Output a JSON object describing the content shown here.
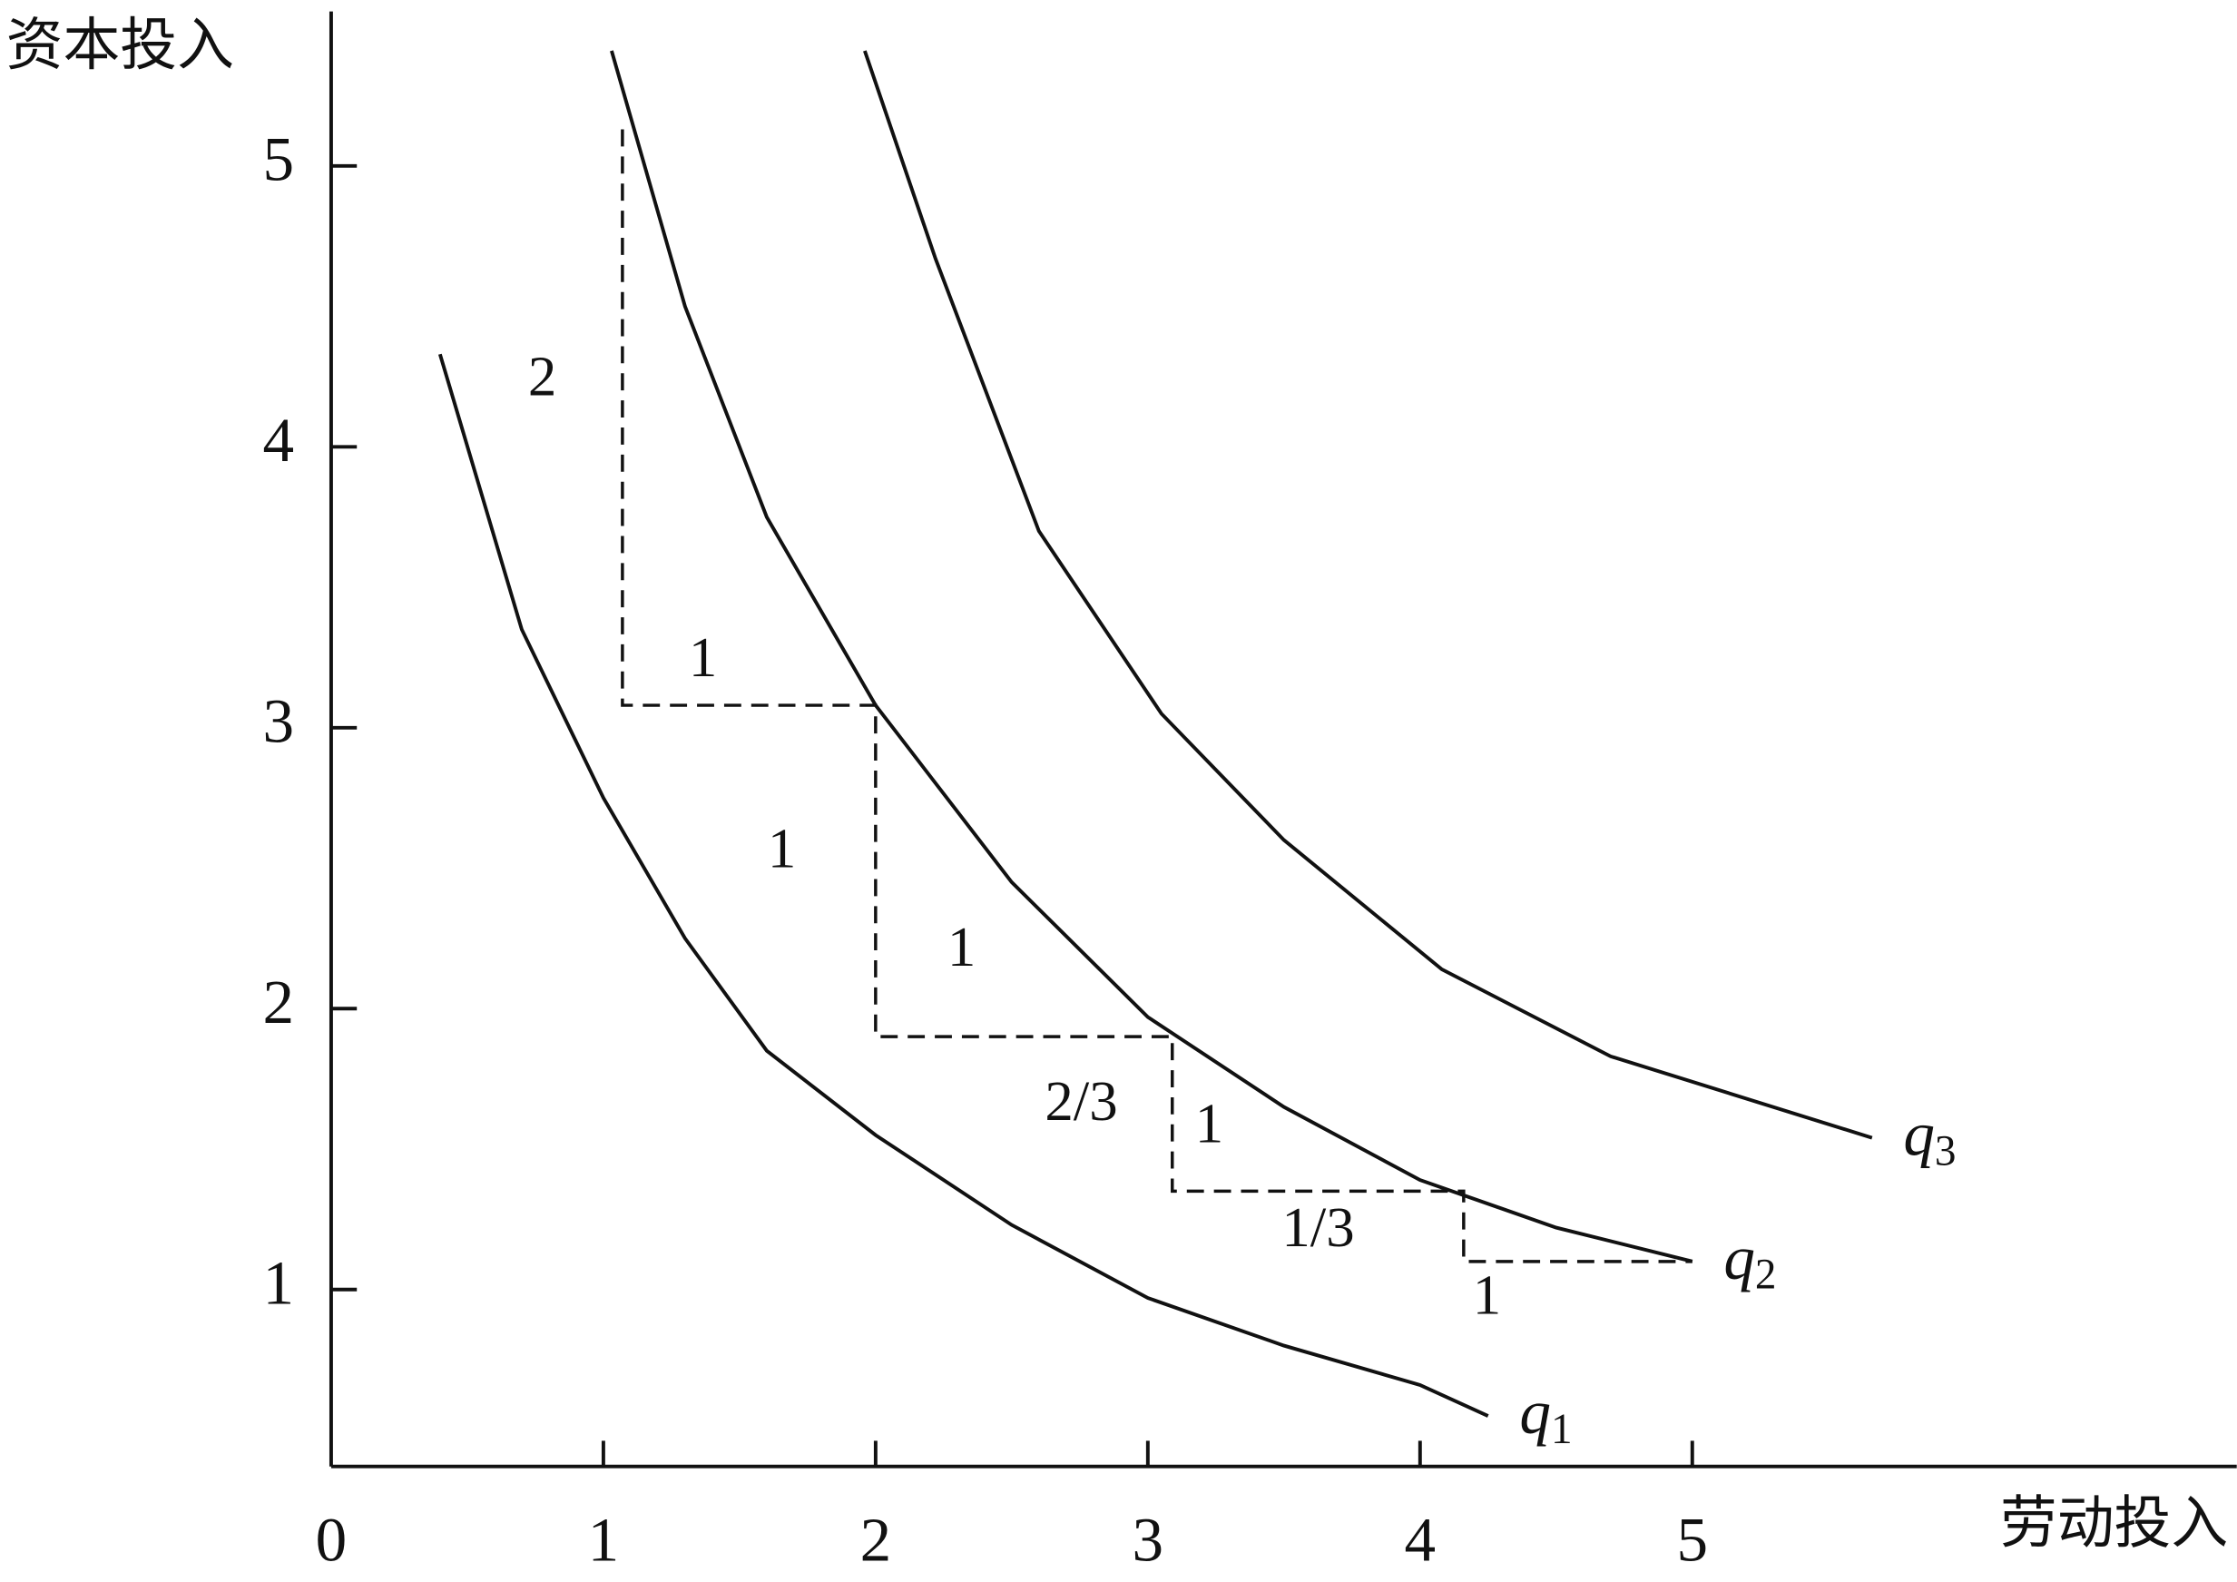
{
  "chart_data": {
    "type": "line",
    "y_label": "资本投入",
    "x_label": "劳动投入",
    "xlim": [
      0,
      7
    ],
    "ylim": [
      0.37,
      5.54
    ],
    "xticks": [
      0,
      1,
      2,
      3,
      4,
      5
    ],
    "yticks": [
      1,
      2,
      3,
      4,
      5
    ],
    "series": [
      {
        "name": "q1",
        "color": "#111111",
        "x": [
          0.4,
          0.7,
          1,
          1.3,
          1.6,
          2,
          2.5,
          3,
          3.5,
          4,
          4.25
        ],
        "values": [
          4.33,
          3.35,
          2.75,
          2.25,
          1.85,
          1.55,
          1.23,
          0.97,
          0.8,
          0.66,
          0.55
        ]
      },
      {
        "name": "q2",
        "color": "#111111",
        "x": [
          1.03,
          1.3,
          1.6,
          2,
          2.5,
          3,
          3.5,
          4,
          4.5,
          5
        ],
        "values": [
          5.41,
          4.5,
          3.75,
          3.08,
          2.45,
          1.97,
          1.65,
          1.39,
          1.22,
          1.1
        ]
      },
      {
        "name": "q3",
        "color": "#111111",
        "x": [
          1.96,
          2.22,
          2.6,
          3.05,
          3.5,
          4.08,
          4.7,
          5.66
        ],
        "values": [
          5.41,
          4.67,
          3.7,
          3.05,
          2.6,
          2.14,
          1.83,
          1.54
        ]
      }
    ],
    "steps": {
      "x": [
        1.07,
        1.07,
        2,
        2,
        3.09,
        3.09,
        4.16,
        4.16,
        5
      ],
      "values": [
        5.13,
        3.08,
        3.08,
        1.9,
        1.9,
        1.35,
        1.35,
        1.1,
        1.1
      ]
    },
    "annotations": [
      "2",
      "1",
      "1",
      "1",
      "2/3",
      "1",
      "1/3",
      "1"
    ]
  }
}
